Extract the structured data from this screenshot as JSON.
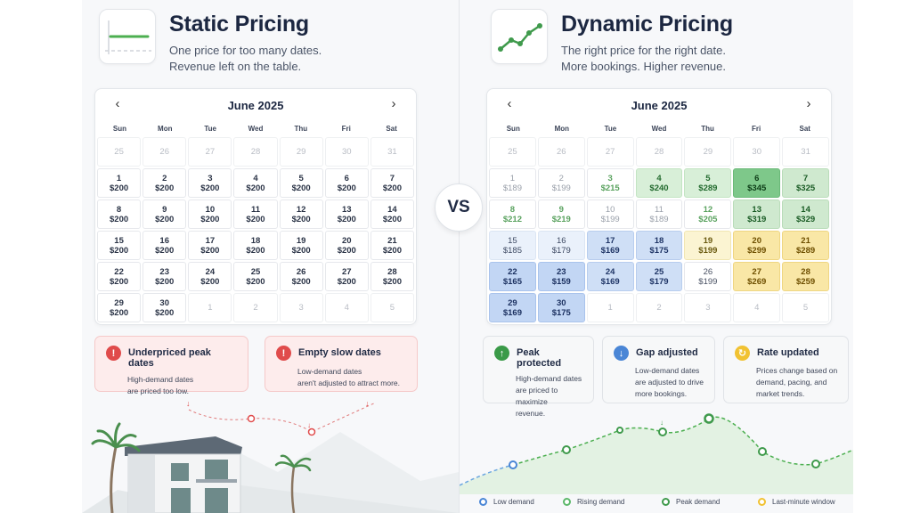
{
  "left": {
    "title": "Static Pricing",
    "subtitle_line1": "One price for too many dates.",
    "subtitle_line2": "Revenue left on the table.",
    "calendar": {
      "month": "June 2025",
      "weekdays": [
        "Sun",
        "Mon",
        "Tue",
        "Wed",
        "Thu",
        "Fri",
        "Sat"
      ],
      "cells": [
        {
          "d": "25",
          "p": ""
        },
        {
          "d": "26",
          "p": ""
        },
        {
          "d": "27",
          "p": ""
        },
        {
          "d": "28",
          "p": ""
        },
        {
          "d": "29",
          "p": ""
        },
        {
          "d": "30",
          "p": ""
        },
        {
          "d": "31",
          "p": ""
        },
        {
          "d": "1",
          "p": "$200"
        },
        {
          "d": "2",
          "p": "$200"
        },
        {
          "d": "3",
          "p": "$200"
        },
        {
          "d": "4",
          "p": "$200"
        },
        {
          "d": "5",
          "p": "$200"
        },
        {
          "d": "6",
          "p": "$200"
        },
        {
          "d": "7",
          "p": "$200"
        },
        {
          "d": "8",
          "p": "$200"
        },
        {
          "d": "9",
          "p": "$200"
        },
        {
          "d": "10",
          "p": "$200"
        },
        {
          "d": "11",
          "p": "$200"
        },
        {
          "d": "12",
          "p": "$200"
        },
        {
          "d": "13",
          "p": "$200"
        },
        {
          "d": "14",
          "p": "$200"
        },
        {
          "d": "15",
          "p": "$200"
        },
        {
          "d": "16",
          "p": "$200"
        },
        {
          "d": "17",
          "p": "$200"
        },
        {
          "d": "18",
          "p": "$200"
        },
        {
          "d": "19",
          "p": "$200"
        },
        {
          "d": "20",
          "p": "$200"
        },
        {
          "d": "21",
          "p": "$200"
        },
        {
          "d": "22",
          "p": "$200"
        },
        {
          "d": "23",
          "p": "$200"
        },
        {
          "d": "24",
          "p": "$200"
        },
        {
          "d": "25",
          "p": "$200"
        },
        {
          "d": "26",
          "p": "$200"
        },
        {
          "d": "27",
          "p": "$200"
        },
        {
          "d": "28",
          "p": "$200"
        },
        {
          "d": "29",
          "p": "$200"
        },
        {
          "d": "30",
          "p": "$200"
        },
        {
          "d": "1",
          "p": ""
        },
        {
          "d": "2",
          "p": ""
        },
        {
          "d": "3",
          "p": ""
        },
        {
          "d": "4",
          "p": ""
        },
        {
          "d": "5",
          "p": ""
        }
      ]
    },
    "cards": [
      {
        "title": "Underpriced peak dates",
        "body_line1": "High-demand dates",
        "body_line2": "are priced too low."
      },
      {
        "title": "Empty slow dates",
        "body_line1": "Low-demand dates",
        "body_line2": "aren't adjusted to attract more."
      }
    ]
  },
  "right": {
    "title": "Dynamic Pricing",
    "subtitle_line1": "The right price for the right date.",
    "subtitle_line2": "More bookings. Higher revenue.",
    "calendar": {
      "month": "June 2025",
      "weekdays": [
        "Sun",
        "Mon",
        "Tue",
        "Wed",
        "Thu",
        "Fri",
        "Sat"
      ],
      "cells": [
        {
          "d": "25",
          "p": ""
        },
        {
          "d": "26",
          "p": ""
        },
        {
          "d": "27",
          "p": ""
        },
        {
          "d": "28",
          "p": ""
        },
        {
          "d": "29",
          "p": ""
        },
        {
          "d": "30",
          "p": ""
        },
        {
          "d": "31",
          "p": ""
        },
        {
          "d": "1",
          "p": "$189"
        },
        {
          "d": "2",
          "p": "$199"
        },
        {
          "d": "3",
          "p": "$215"
        },
        {
          "d": "4",
          "p": "$240"
        },
        {
          "d": "5",
          "p": "$289"
        },
        {
          "d": "6",
          "p": "$345"
        },
        {
          "d": "7",
          "p": "$325"
        },
        {
          "d": "8",
          "p": "$212"
        },
        {
          "d": "9",
          "p": "$219"
        },
        {
          "d": "10",
          "p": "$199"
        },
        {
          "d": "11",
          "p": "$189"
        },
        {
          "d": "12",
          "p": "$205"
        },
        {
          "d": "13",
          "p": "$319"
        },
        {
          "d": "14",
          "p": "$329"
        },
        {
          "d": "15",
          "p": "$185"
        },
        {
          "d": "16",
          "p": "$179"
        },
        {
          "d": "17",
          "p": "$169"
        },
        {
          "d": "18",
          "p": "$175"
        },
        {
          "d": "19",
          "p": "$199"
        },
        {
          "d": "20",
          "p": "$299"
        },
        {
          "d": "21",
          "p": "$289"
        },
        {
          "d": "22",
          "p": "$165"
        },
        {
          "d": "23",
          "p": "$159"
        },
        {
          "d": "24",
          "p": "$169"
        },
        {
          "d": "25",
          "p": "$179"
        },
        {
          "d": "26",
          "p": "$199"
        },
        {
          "d": "27",
          "p": "$269"
        },
        {
          "d": "28",
          "p": "$259"
        },
        {
          "d": "29",
          "p": "$169"
        },
        {
          "d": "30",
          "p": "$175"
        },
        {
          "d": "1",
          "p": ""
        },
        {
          "d": "2",
          "p": ""
        },
        {
          "d": "3",
          "p": ""
        },
        {
          "d": "4",
          "p": ""
        },
        {
          "d": "5",
          "p": ""
        }
      ],
      "styles": [
        "muted",
        "muted",
        "muted",
        "muted",
        "muted",
        "muted",
        "muted",
        "fade",
        "fade",
        "gx",
        "g2",
        "g2",
        "g4",
        "g3",
        "gx",
        "gx",
        "fade",
        "fade",
        "gx",
        "g3",
        "g3",
        "b1",
        "b1",
        "b2",
        "b2",
        "y1",
        "y2",
        "y2",
        "b3",
        "b3",
        "b2",
        "b2",
        "wh",
        "y2",
        "y2",
        "b3",
        "b3",
        "muted",
        "muted",
        "muted",
        "muted",
        "muted"
      ]
    },
    "cards": [
      {
        "title": "Peak protected",
        "body_line1": "High-demand dates",
        "body_line2": "are priced to maximize",
        "body_line3": "revenue."
      },
      {
        "title": "Gap adjusted",
        "body_line1": "Low-demand dates",
        "body_line2": "are adjusted to drive",
        "body_line3": "more bookings."
      },
      {
        "title": "Rate updated",
        "body_line1": "Prices change based on",
        "body_line2": "demand, pacing, and",
        "body_line3": "market trends."
      }
    ],
    "legend": [
      "Low demand",
      "Rising demand",
      "Peak demand",
      "Last-minute window"
    ]
  },
  "vs": "VS",
  "colors": {
    "static_line": "#4caf50",
    "dynamic_line": "#4caf50",
    "alert_red": "#e04b4b",
    "accent_blue": "#4a86d6"
  }
}
